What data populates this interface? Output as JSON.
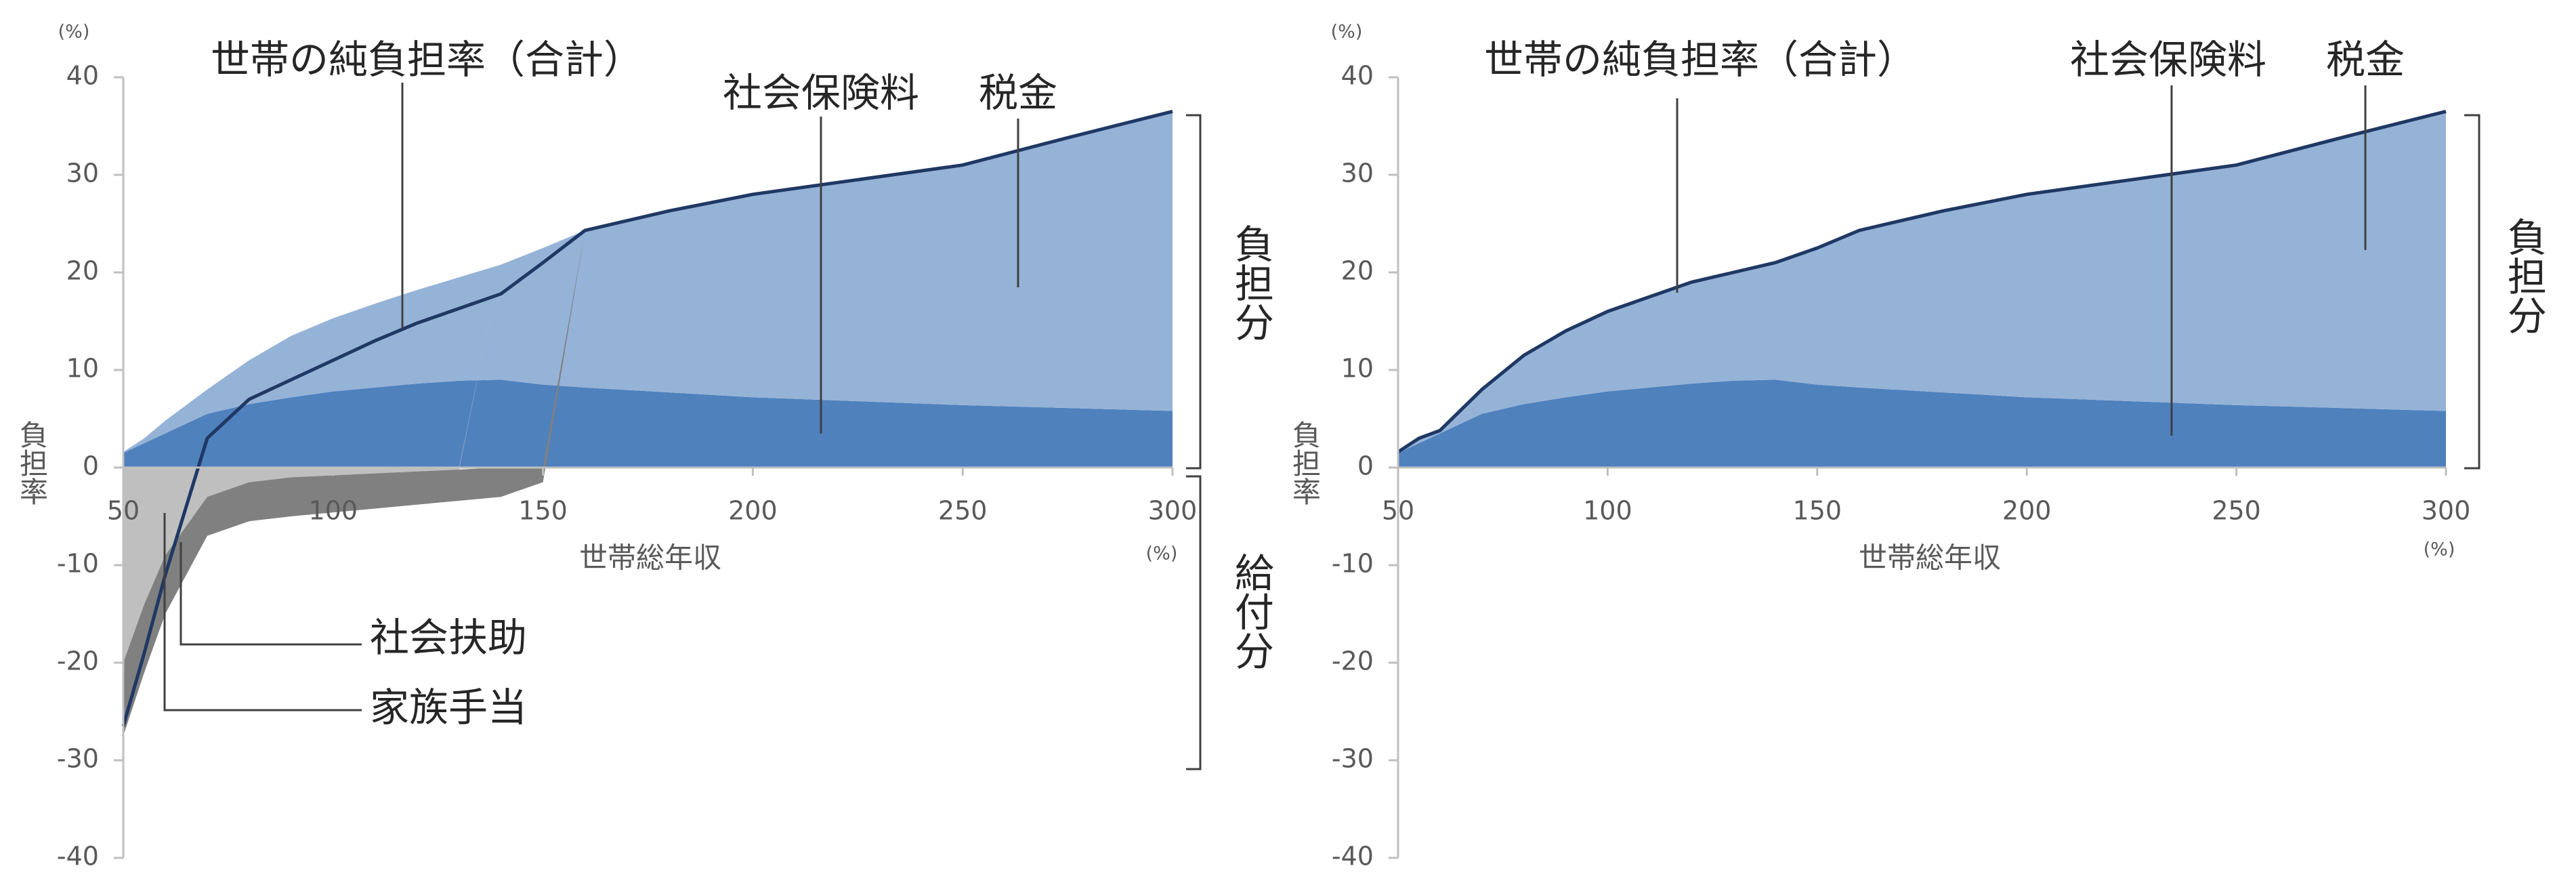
{
  "chart_data": [
    {
      "type": "area",
      "y_unit": "(%)",
      "y_label": "負担率",
      "x_label": "世帯総年収",
      "x_unit": "(%)",
      "x": [
        50,
        55,
        60,
        70,
        80,
        90,
        100,
        110,
        120,
        130,
        140,
        150,
        160,
        180,
        200,
        225,
        250,
        275,
        300
      ],
      "xlim": [
        50,
        300
      ],
      "xticks": [
        50,
        100,
        150,
        200,
        250,
        300
      ],
      "ylim": [
        -40,
        40
      ],
      "yticks": [
        -40,
        -30,
        -20,
        -10,
        0,
        10,
        20,
        30,
        40
      ],
      "series": [
        {
          "name": "社会保険料",
          "color": "#4f81bd",
          "values": [
            1.5,
            2.5,
            3.5,
            5.5,
            6.5,
            7.2,
            7.8,
            8.2,
            8.6,
            8.9,
            9,
            8.5,
            8.2,
            7.7,
            7.2,
            6.8,
            6.4,
            6.1,
            5.8
          ]
        },
        {
          "name": "税金",
          "color": "#95b3d7",
          "values": [
            0.1,
            0.5,
            1.3,
            2.5,
            4.5,
            6.3,
            7.5,
            8.6,
            9.6,
            10.6,
            11.8,
            14,
            16.1,
            18.6,
            20.8,
            22.7,
            24.6,
            27.7,
            30.7
          ]
        },
        {
          "name": "社会扶助",
          "color": "#bfbfbf",
          "values": [
            -20,
            -14,
            -9,
            -3,
            -1.5,
            -1,
            -0.8,
            -0.6,
            -0.4,
            -0.2,
            0,
            0,
            0,
            0,
            0,
            0,
            0,
            0,
            0
          ]
        },
        {
          "name": "家族手当",
          "color": "#808080",
          "values": [
            -7.5,
            -7,
            -6,
            -4,
            -4,
            -4,
            -3.8,
            -3.6,
            -3.4,
            -3.2,
            -3,
            -1.5,
            0,
            0,
            0,
            0,
            0,
            0,
            0
          ]
        },
        {
          "name": "世帯の純負担率（合計）",
          "type": "line",
          "color": "#1f3864",
          "values": [
            -26.5,
            -19,
            -11,
            3,
            7,
            9,
            11,
            13,
            14.8,
            16.3,
            17.8,
            21,
            24.3,
            26.3,
            28,
            29.5,
            31,
            33.8,
            36.5
          ]
        }
      ],
      "bracket_labels": [
        "負担分",
        "給付分"
      ]
    },
    {
      "type": "area",
      "y_unit": "(%)",
      "y_label": "負担率",
      "x_label": "世帯総年収",
      "x_unit": "(%)",
      "x": [
        50,
        55,
        60,
        70,
        80,
        90,
        100,
        110,
        120,
        130,
        140,
        150,
        160,
        180,
        200,
        225,
        250,
        275,
        300
      ],
      "xlim": [
        50,
        300
      ],
      "xticks": [
        50,
        100,
        150,
        200,
        250,
        300
      ],
      "ylim": [
        -40,
        40
      ],
      "yticks": [
        -40,
        -30,
        -20,
        -10,
        0,
        10,
        20,
        30,
        40
      ],
      "series": [
        {
          "name": "社会保険料",
          "color": "#4f81bd",
          "values": [
            1.5,
            2.5,
            3.5,
            5.5,
            6.5,
            7.2,
            7.8,
            8.2,
            8.6,
            8.9,
            9,
            8.5,
            8.2,
            7.7,
            7.2,
            6.8,
            6.4,
            6.1,
            5.8
          ]
        },
        {
          "name": "税金",
          "color": "#95b3d7",
          "values": [
            0.1,
            0.5,
            0.3,
            2.5,
            5,
            6.8,
            8.2,
            9.3,
            10.4,
            11.1,
            12,
            14,
            16.1,
            18.6,
            20.8,
            22.7,
            24.6,
            27.7,
            30.7
          ]
        },
        {
          "name": "世帯の純負担率（合計）",
          "type": "line",
          "color": "#1f3864",
          "values": [
            1.6,
            3,
            3.8,
            8,
            11.5,
            14,
            16,
            17.5,
            19,
            20,
            21,
            22.5,
            24.3,
            26.3,
            28,
            29.5,
            31,
            33.8,
            36.5
          ]
        }
      ],
      "bracket_labels": [
        "負担分"
      ]
    }
  ]
}
